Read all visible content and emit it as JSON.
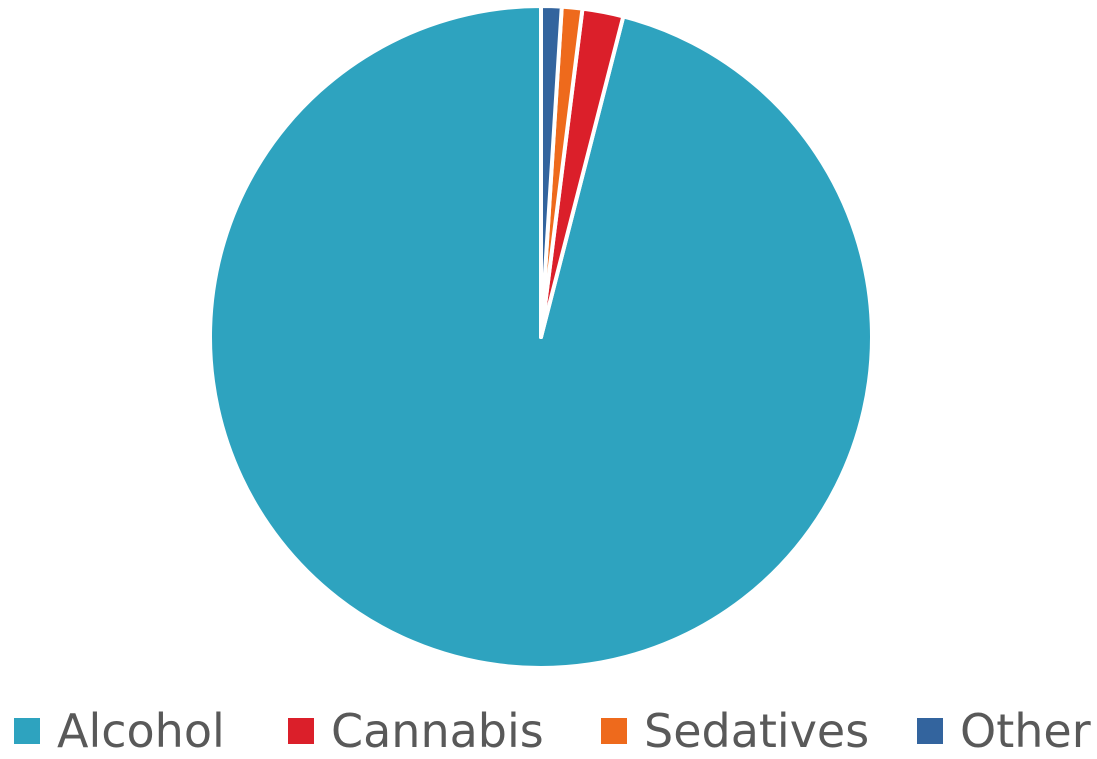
{
  "chart_data": {
    "type": "pie",
    "labels": [
      "Alcohol",
      "Cannabis",
      "Sedatives",
      "Other"
    ],
    "values": [
      96,
      2,
      1,
      1
    ],
    "colors": [
      "#2ea3bf",
      "#db1f2a",
      "#ee6a1c",
      "#33649e"
    ],
    "legend_position": "bottom",
    "start_angle_deg": 0,
    "direction": "counterclockwise"
  }
}
